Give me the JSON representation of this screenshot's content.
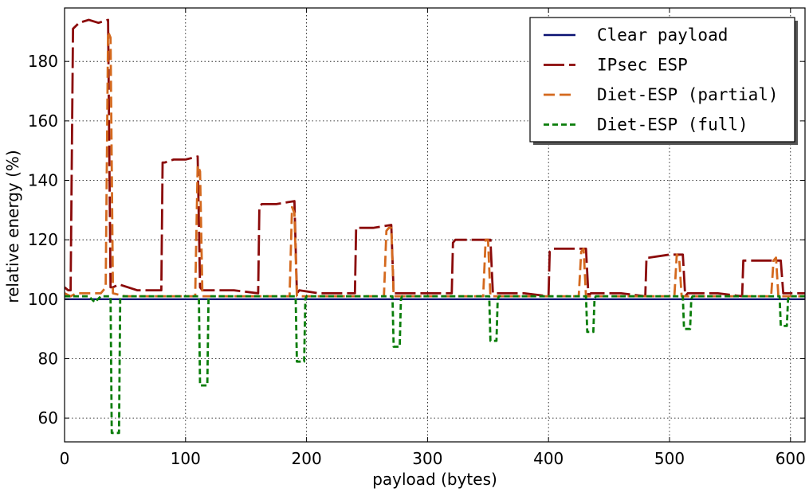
{
  "chart_data": {
    "type": "line",
    "xlabel": "payload (bytes)",
    "ylabel": "relative energy (%)",
    "xlim": [
      0,
      612
    ],
    "ylim": [
      52,
      198
    ],
    "xticks": [
      0,
      100,
      200,
      300,
      400,
      500,
      600
    ],
    "yticks": [
      60,
      80,
      100,
      120,
      140,
      160,
      180
    ],
    "grid": true,
    "legend_position": "top-right",
    "series": [
      {
        "name": "Clear payload",
        "color": "#0a1172",
        "dash": "solid",
        "x": [
          0,
          612
        ],
        "y": [
          100,
          100
        ]
      },
      {
        "name": "IPsec ESP",
        "color": "#8b0a0a",
        "dash": "long-dash",
        "x": [
          0,
          3,
          5,
          7,
          12,
          20,
          28,
          36,
          38,
          40,
          45,
          60,
          80,
          81,
          83,
          90,
          100,
          110,
          112,
          114,
          120,
          140,
          160,
          161,
          163,
          175,
          190,
          192,
          194,
          210,
          240,
          241,
          243,
          255,
          270,
          272,
          274,
          290,
          320,
          321,
          323,
          340,
          352,
          354,
          356,
          380,
          400,
          401,
          403,
          418,
          431,
          433,
          435,
          460,
          480,
          481,
          483,
          500,
          511,
          513,
          515,
          540,
          560,
          561,
          563,
          580,
          592,
          594,
          596,
          612
        ],
        "y": [
          104,
          103,
          103,
          191,
          193,
          194,
          193,
          194,
          104,
          104,
          105,
          103,
          103,
          146,
          146,
          147,
          147,
          148,
          104,
          103,
          103,
          103,
          102,
          131,
          132,
          132,
          133,
          102,
          103,
          102,
          102,
          124,
          124,
          124,
          125,
          102,
          102,
          102,
          102,
          119,
          120,
          120,
          120,
          102,
          102,
          102,
          101,
          116,
          117,
          117,
          117,
          101,
          102,
          102,
          101,
          114,
          114,
          115,
          115,
          101,
          102,
          102,
          101,
          113,
          113,
          113,
          113,
          102,
          102,
          102
        ]
      },
      {
        "name": "Diet-ESP (partial)",
        "color": "#d4691e",
        "dash": "dash",
        "x": [
          0,
          5,
          10,
          20,
          30,
          34,
          36,
          38,
          40,
          50,
          80,
          100,
          108,
          110,
          112,
          114,
          116,
          130,
          160,
          186,
          188,
          190,
          192,
          194,
          200,
          240,
          264,
          266,
          268,
          270,
          272,
          274,
          300,
          340,
          346,
          348,
          350,
          352,
          354,
          356,
          380,
          420,
          425,
          427,
          429,
          431,
          433,
          435,
          460,
          500,
          504,
          506,
          508,
          510,
          512,
          514,
          540,
          580,
          584,
          586,
          588,
          590,
          592,
          594,
          612
        ],
        "y": [
          102,
          101,
          102,
          102,
          102,
          104,
          190,
          188,
          102,
          101,
          101,
          101,
          101,
          145,
          143,
          101,
          101,
          101,
          101,
          101,
          131,
          129,
          101,
          101,
          101,
          101,
          101,
          123,
          124,
          124,
          101,
          101,
          101,
          101,
          101,
          120,
          120,
          101,
          101,
          101,
          101,
          101,
          101,
          116,
          117,
          101,
          101,
          101,
          101,
          101,
          101,
          115,
          114,
          101,
          101,
          101,
          101,
          101,
          101,
          113,
          114,
          101,
          101,
          101,
          101
        ]
      },
      {
        "name": "Diet-ESP (full)",
        "color": "#0a7d0a",
        "dash": "short-dash",
        "x": [
          0,
          10,
          20,
          25,
          30,
          38,
          39,
          40,
          45,
          46,
          47,
          60,
          80,
          100,
          111,
          112,
          113,
          118,
          119,
          120,
          140,
          180,
          191,
          192,
          193,
          198,
          199,
          200,
          240,
          271,
          272,
          273,
          277,
          278,
          279,
          320,
          351,
          352,
          353,
          357,
          358,
          359,
          400,
          431,
          432,
          433,
          437,
          438,
          439,
          480,
          511,
          512,
          513,
          517,
          518,
          519,
          560,
          591,
          592,
          593,
          597,
          598,
          599,
          612
        ],
        "y": [
          101,
          101,
          101,
          99,
          101,
          101,
          55,
          55,
          55,
          100,
          101,
          101,
          101,
          101,
          101,
          71,
          71,
          71,
          100,
          101,
          101,
          101,
          101,
          79,
          79,
          79,
          100,
          101,
          101,
          101,
          84,
          84,
          84,
          100,
          101,
          101,
          101,
          86,
          86,
          86,
          100,
          101,
          101,
          101,
          89,
          89,
          89,
          100,
          101,
          101,
          101,
          90,
          90,
          90,
          100,
          101,
          101,
          101,
          91,
          91,
          91,
          100,
          101,
          101
        ]
      }
    ]
  }
}
